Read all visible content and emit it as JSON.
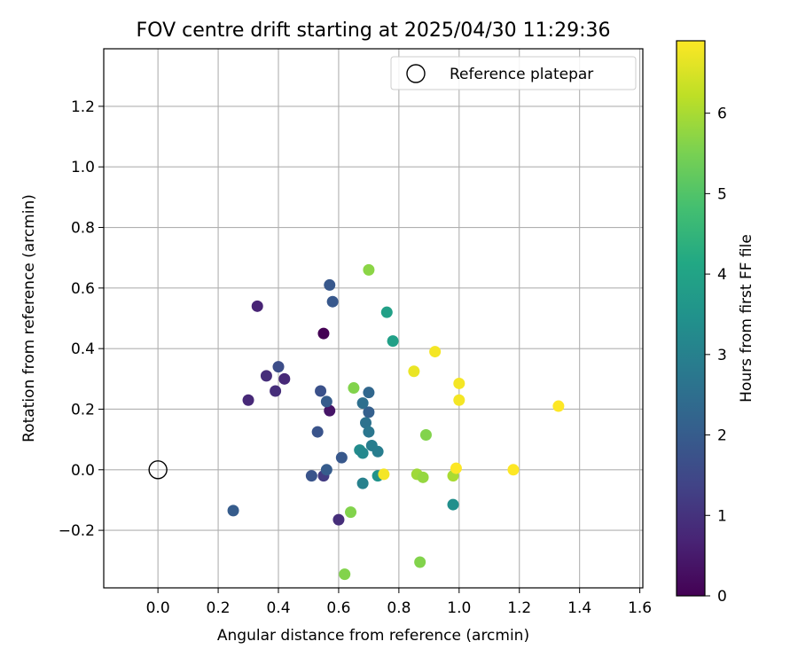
{
  "chart_data": {
    "type": "scatter",
    "title": "FOV centre drift starting at 2025/04/30 11:29:36",
    "xlabel": "Angular distance from reference (arcmin)",
    "ylabel": "Rotation from reference (arcmin)",
    "xlim": [
      -0.18,
      1.61
    ],
    "ylim": [
      -0.39,
      1.39
    ],
    "xticks": [
      0.0,
      0.2,
      0.4,
      0.6,
      0.8,
      1.0,
      1.2,
      1.4,
      1.6
    ],
    "xtick_labels": [
      "0.0",
      "0.2",
      "0.4",
      "0.6",
      "0.8",
      "1.0",
      "1.2",
      "1.4",
      "1.6"
    ],
    "yticks": [
      -0.2,
      0.0,
      0.2,
      0.4,
      0.6,
      0.8,
      1.0,
      1.2
    ],
    "ytick_labels": [
      "−0.2",
      "0.0",
      "0.2",
      "0.4",
      "0.6",
      "0.8",
      "1.0",
      "1.2"
    ],
    "grid": true,
    "legend": {
      "position": "top-right",
      "entries": [
        "Reference platepar"
      ]
    },
    "reference_point": {
      "x": 0.0,
      "y": 0.0,
      "label": "Reference platepar"
    },
    "colorbar": {
      "label": "Hours from first FF file",
      "colormap": "viridis",
      "range": [
        0,
        6.9
      ],
      "ticks": [
        0,
        1,
        2,
        3,
        4,
        5,
        6
      ],
      "tick_labels": [
        "0",
        "1",
        "2",
        "3",
        "4",
        "5",
        "6"
      ]
    },
    "points": [
      {
        "x": 0.55,
        "y": 0.45,
        "hours": 0.0
      },
      {
        "x": 0.57,
        "y": 0.195,
        "hours": 0.4
      },
      {
        "x": 0.33,
        "y": 0.54,
        "hours": 0.7
      },
      {
        "x": 0.3,
        "y": 0.23,
        "hours": 0.8
      },
      {
        "x": 0.36,
        "y": 0.31,
        "hours": 0.9
      },
      {
        "x": 0.39,
        "y": 0.26,
        "hours": 0.9
      },
      {
        "x": 0.42,
        "y": 0.3,
        "hours": 0.8
      },
      {
        "x": 0.6,
        "y": -0.165,
        "hours": 0.9
      },
      {
        "x": 0.55,
        "y": -0.02,
        "hours": 1.2
      },
      {
        "x": 0.4,
        "y": 0.34,
        "hours": 1.6
      },
      {
        "x": 0.54,
        "y": 0.26,
        "hours": 1.7
      },
      {
        "x": 0.56,
        "y": 0.225,
        "hours": 2.0
      },
      {
        "x": 0.53,
        "y": 0.125,
        "hours": 1.8
      },
      {
        "x": 0.51,
        "y": -0.02,
        "hours": 1.8
      },
      {
        "x": 0.56,
        "y": 0.0,
        "hours": 2.0
      },
      {
        "x": 0.61,
        "y": 0.04,
        "hours": 1.9
      },
      {
        "x": 0.25,
        "y": -0.135,
        "hours": 2.0
      },
      {
        "x": 0.57,
        "y": 0.61,
        "hours": 1.9
      },
      {
        "x": 0.58,
        "y": 0.555,
        "hours": 1.9
      },
      {
        "x": 0.7,
        "y": 0.19,
        "hours": 2.1
      },
      {
        "x": 0.7,
        "y": 0.255,
        "hours": 2.3
      },
      {
        "x": 0.68,
        "y": 0.22,
        "hours": 2.5
      },
      {
        "x": 0.69,
        "y": 0.155,
        "hours": 2.6
      },
      {
        "x": 0.7,
        "y": 0.125,
        "hours": 2.7
      },
      {
        "x": 0.71,
        "y": 0.08,
        "hours": 2.9
      },
      {
        "x": 0.73,
        "y": 0.06,
        "hours": 2.9
      },
      {
        "x": 0.67,
        "y": 0.065,
        "hours": 3.3
      },
      {
        "x": 0.68,
        "y": 0.055,
        "hours": 3.2
      },
      {
        "x": 0.68,
        "y": -0.045,
        "hours": 3.0
      },
      {
        "x": 0.73,
        "y": -0.02,
        "hours": 3.5
      },
      {
        "x": 0.98,
        "y": -0.115,
        "hours": 3.4
      },
      {
        "x": 0.76,
        "y": 0.52,
        "hours": 3.9
      },
      {
        "x": 0.78,
        "y": 0.425,
        "hours": 3.9
      },
      {
        "x": 0.7,
        "y": 0.66,
        "hours": 5.7
      },
      {
        "x": 0.65,
        "y": 0.27,
        "hours": 5.6
      },
      {
        "x": 0.89,
        "y": 0.115,
        "hours": 5.6
      },
      {
        "x": 0.64,
        "y": -0.14,
        "hours": 5.6
      },
      {
        "x": 0.62,
        "y": -0.345,
        "hours": 5.6
      },
      {
        "x": 0.87,
        "y": -0.305,
        "hours": 5.6
      },
      {
        "x": 0.86,
        "y": -0.015,
        "hours": 5.9
      },
      {
        "x": 0.88,
        "y": -0.025,
        "hours": 5.8
      },
      {
        "x": 0.98,
        "y": -0.02,
        "hours": 6.0
      },
      {
        "x": 0.75,
        "y": -0.015,
        "hours": 6.8
      },
      {
        "x": 0.85,
        "y": 0.325,
        "hours": 6.7
      },
      {
        "x": 0.92,
        "y": 0.39,
        "hours": 6.8
      },
      {
        "x": 1.0,
        "y": 0.285,
        "hours": 6.8
      },
      {
        "x": 1.0,
        "y": 0.23,
        "hours": 6.8
      },
      {
        "x": 0.99,
        "y": 0.005,
        "hours": 6.9
      },
      {
        "x": 1.18,
        "y": 0.0,
        "hours": 6.9
      },
      {
        "x": 1.33,
        "y": 0.21,
        "hours": 6.9
      }
    ]
  }
}
